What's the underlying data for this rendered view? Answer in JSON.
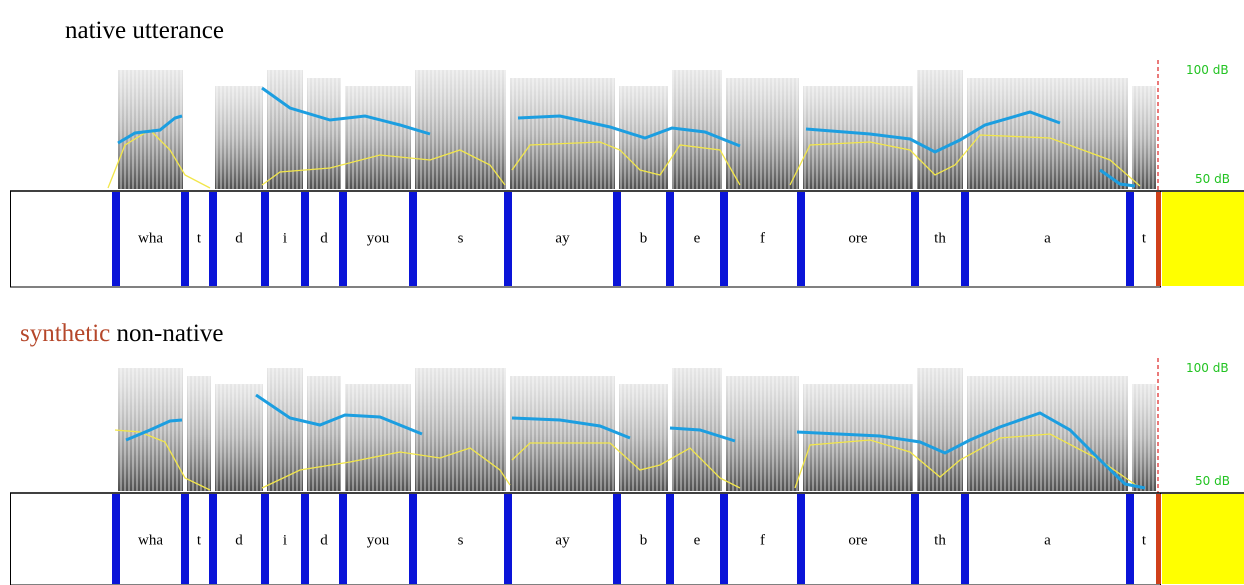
{
  "panels": [
    {
      "title": [
        "native utterance"
      ],
      "db_labels": [
        "100 dB",
        "50 dB"
      ],
      "segments": [
        "wha",
        "t",
        "d",
        "i",
        "d",
        "you",
        "s",
        "ay",
        "b",
        "e",
        "f",
        "ore",
        "th",
        "a",
        "t"
      ]
    },
    {
      "title": [
        "synthetic",
        "non-native"
      ],
      "db_labels": [
        "100 dB",
        "50 dB"
      ],
      "segments": [
        "wha",
        "t",
        "d",
        "i",
        "d",
        "you",
        "s",
        "ay",
        "b",
        "e",
        "f",
        "ore",
        "th",
        "a",
        "t"
      ]
    }
  ]
}
